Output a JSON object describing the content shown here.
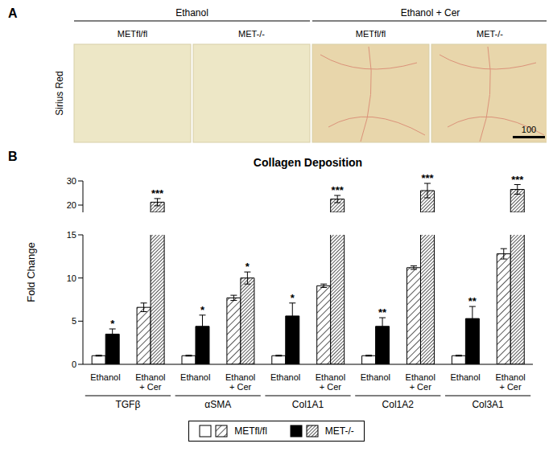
{
  "panel_a": {
    "label": "A",
    "stain": "Sirius Red",
    "groups": [
      {
        "title": "Ethanol",
        "columns": [
          "METfl/fl",
          "MET-/-"
        ]
      },
      {
        "title": "Ethanol + Cer",
        "columns": [
          "METfl/fl",
          "MET-/-"
        ]
      }
    ],
    "scale_bar": 100
  },
  "chart_data": {
    "type": "bar",
    "panel_label": "B",
    "title": "Collagen Deposition",
    "y_label": "Fold Change",
    "categories": [
      "TGFβ",
      "αSMA",
      "Col1A1",
      "Col1A2",
      "Col3A1"
    ],
    "groups": [
      "Ethanol",
      "Ethanol + Cer"
    ],
    "ylim": [
      0,
      30
    ],
    "yticks": [
      0,
      5,
      10,
      15,
      20,
      30
    ],
    "y_break": [
      15,
      17
    ],
    "legend": "bottom",
    "series": [
      {
        "name": "METfl/fl",
        "group": "Ethanol",
        "color": "#ffffff",
        "values": [
          1.0,
          1.0,
          1.0,
          1.0,
          1.0
        ],
        "errors": [
          0.05,
          0.05,
          0.05,
          0.05,
          0.05
        ],
        "stars": [
          null,
          null,
          null,
          null,
          null
        ]
      },
      {
        "name": "MET-/-",
        "group": "Ethanol",
        "color": "#000000",
        "values": [
          3.5,
          4.4,
          5.6,
          4.4,
          5.3
        ],
        "errors": [
          0.6,
          1.3,
          1.5,
          1.0,
          1.4
        ],
        "stars": [
          "*",
          "*",
          "*",
          "**",
          "**"
        ]
      },
      {
        "name": "METfl/fl",
        "group": "Ethanol + Cer",
        "color": "#ffffff",
        "marker": "hatch",
        "values": [
          6.6,
          7.7,
          9.1,
          11.2,
          12.8
        ],
        "errors": [
          0.5,
          0.3,
          0.2,
          0.2,
          0.6
        ],
        "stars": [
          null,
          null,
          null,
          null,
          null
        ]
      },
      {
        "name": "MET-/-",
        "group": "Ethanol + Cer",
        "color": "#ffffff",
        "marker": "dense_hatch",
        "values": [
          21.2,
          10.0,
          22.5,
          26.0,
          26.5
        ],
        "errors": [
          1.5,
          0.7,
          1.5,
          3.0,
          2.0
        ],
        "stars": [
          "***",
          "*",
          "***",
          "***",
          "***"
        ]
      }
    ]
  }
}
